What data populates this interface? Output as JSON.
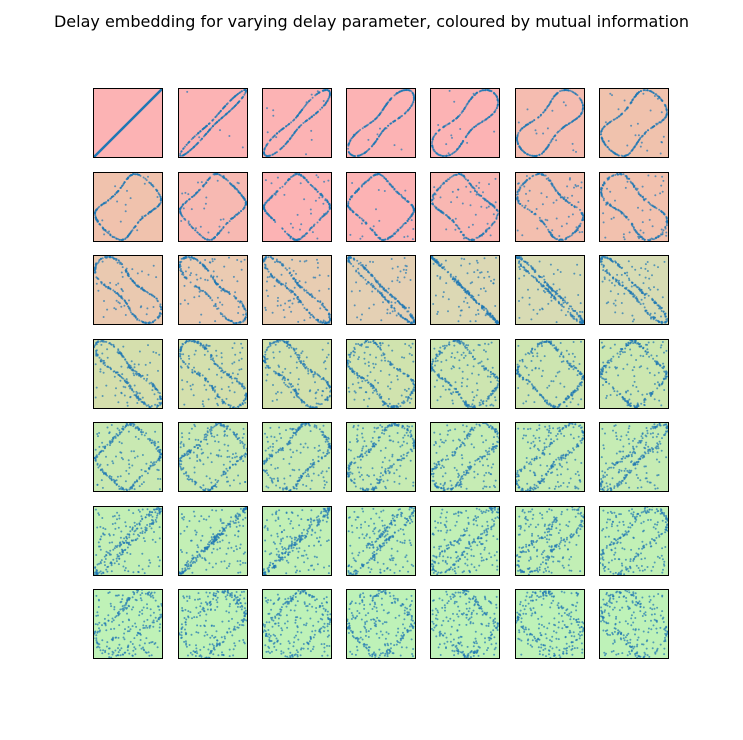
{
  "chart_data": {
    "type": "scatter",
    "title": "Delay embedding for varying delay parameter, coloured by mutual information",
    "layout": {
      "rows": 7,
      "cols": 7
    },
    "panel_count": 49,
    "marker_color": "#1f77b4",
    "background_colors": [
      "#fcb3b4",
      "#fcb3b4",
      "#fcb3b4",
      "#fcb3b4",
      "#fcb3b4",
      "#f5bcb0",
      "#f0c2ad",
      "#f0c2ad",
      "#f7b9b2",
      "#fcb3b4",
      "#fcb3b4",
      "#f9b7b2",
      "#f3bfaf",
      "#f2c1ae",
      "#eac9b0",
      "#ebcbb2",
      "#e8cdb2",
      "#e4d0b4",
      "#dcd8b4",
      "#d8dbb4",
      "#d7dcb4",
      "#d5dfad",
      "#d4e0ad",
      "#d2e1ad",
      "#d0e3ae",
      "#cde5b0",
      "#cde5b0",
      "#cce7b0",
      "#c9e9b2",
      "#c9e9b2",
      "#c8eab3",
      "#c7ebb3",
      "#c6ecb4",
      "#c6ecb4",
      "#c6ecb4",
      "#c3efb5",
      "#c3efb5",
      "#c2f0b6",
      "#c2f0b6",
      "#c1f0b6",
      "#c2efb5",
      "#c1f0b6",
      "#bff2b7",
      "#bff2b7",
      "#bef2b8",
      "#bef2b8",
      "#bef2b8",
      "#bef2b8",
      "#bef2b8"
    ],
    "xlabel": "",
    "ylabel": "",
    "grid": false,
    "ticks": false
  }
}
